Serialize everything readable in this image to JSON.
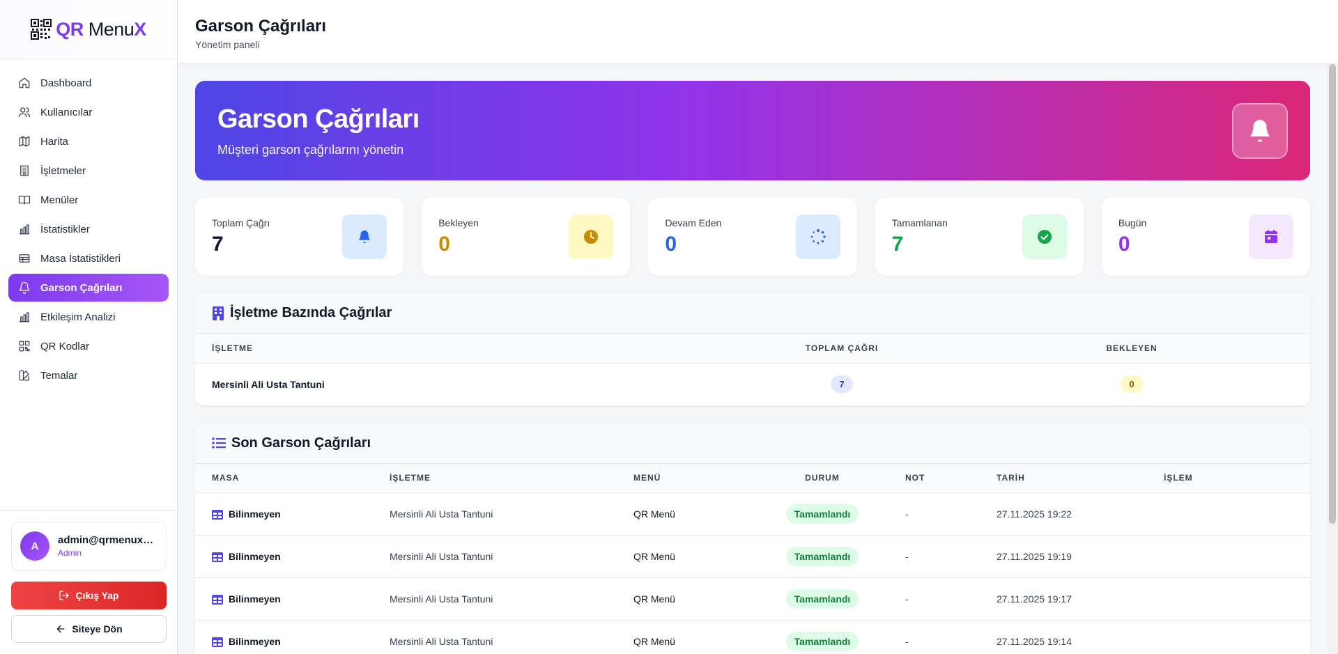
{
  "app": {
    "logo_prefix": "QR",
    "logo_main": "Menu",
    "logo_suffix": "X"
  },
  "sidebar": {
    "items": [
      {
        "label": "Dashboard",
        "icon": "home-icon"
      },
      {
        "label": "Kullanıcılar",
        "icon": "users-icon"
      },
      {
        "label": "Harita",
        "icon": "map-icon"
      },
      {
        "label": "İşletmeler",
        "icon": "building-icon"
      },
      {
        "label": "Menüler",
        "icon": "book-icon"
      },
      {
        "label": "İstatistikler",
        "icon": "bar-chart-icon"
      },
      {
        "label": "Masa İstatistikleri",
        "icon": "table-icon"
      },
      {
        "label": "Garson Çağrıları",
        "icon": "bell-icon",
        "active": true
      },
      {
        "label": "Etkileşim Analizi",
        "icon": "bar-chart-icon"
      },
      {
        "label": "QR Kodlar",
        "icon": "qr-icon"
      },
      {
        "label": "Temalar",
        "icon": "palette-icon"
      }
    ],
    "user": {
      "initial": "A",
      "email": "admin@qrmenux.c...",
      "role": "Admin"
    },
    "logout_label": "Çıkış Yap",
    "back_label": "Siteye Dön"
  },
  "header": {
    "title": "Garson Çağrıları",
    "subtitle": "Yönetim paneli"
  },
  "hero": {
    "title": "Garson Çağrıları",
    "subtitle": "Müşteri garson çağrılarını yönetin"
  },
  "stats": [
    {
      "label": "Toplam Çağrı",
      "value": "7",
      "color": "#111827",
      "icon": "bell-icon",
      "bg": "#dbeafe",
      "fg": "#2563eb"
    },
    {
      "label": "Bekleyen",
      "value": "0",
      "color": "#ca8a04",
      "icon": "clock-icon",
      "bg": "#fef9c3",
      "fg": "#ca8a04"
    },
    {
      "label": "Devam Eden",
      "value": "0",
      "color": "#2563eb",
      "icon": "spinner-icon",
      "bg": "#dbeafe",
      "fg": "#2563eb"
    },
    {
      "label": "Tamamlanan",
      "value": "7",
      "color": "#16a34a",
      "icon": "check-circle-icon",
      "bg": "#dcfce7",
      "fg": "#16a34a"
    },
    {
      "label": "Bugün",
      "value": "0",
      "color": "#9333ea",
      "icon": "calendar-icon",
      "bg": "#f3e8ff",
      "fg": "#9333ea"
    }
  ],
  "business_section": {
    "title": "İşletme Bazında Çağrılar",
    "columns": [
      "İŞLETME",
      "TOPLAM ÇAĞRI",
      "BEKLEYEN"
    ],
    "rows": [
      {
        "name": "Mersinli Ali Usta Tantuni",
        "total": "7",
        "pending": "0"
      }
    ]
  },
  "calls_section": {
    "title": "Son Garson Çağrıları",
    "columns": [
      "MASA",
      "İŞLETME",
      "MENÜ",
      "DURUM",
      "NOT",
      "TARİH",
      "İŞLEM"
    ],
    "rows": [
      {
        "table": "Bilinmeyen",
        "business": "Mersinli Ali Usta Tantuni",
        "menu": "QR Menü",
        "status": "Tamamlandı",
        "note": "-",
        "date": "27.11.2025 19:22"
      },
      {
        "table": "Bilinmeyen",
        "business": "Mersinli Ali Usta Tantuni",
        "menu": "QR Menü",
        "status": "Tamamlandı",
        "note": "-",
        "date": "27.11.2025 19:19"
      },
      {
        "table": "Bilinmeyen",
        "business": "Mersinli Ali Usta Tantuni",
        "menu": "QR Menü",
        "status": "Tamamlandı",
        "note": "-",
        "date": "27.11.2025 19:17"
      },
      {
        "table": "Bilinmeyen",
        "business": "Mersinli Ali Usta Tantuni",
        "menu": "QR Menü",
        "status": "Tamamlandı",
        "note": "-",
        "date": "27.11.2025 19:14"
      }
    ]
  }
}
